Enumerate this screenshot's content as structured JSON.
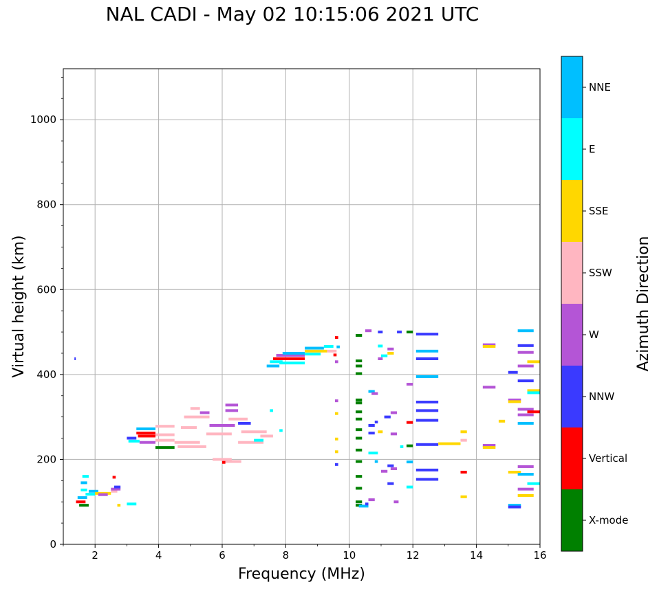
{
  "chart_data": {
    "type": "scatter",
    "title": "NAL CADI - May 02 10:15:06 2021 UTC",
    "xlabel": "Frequency (MHz)",
    "ylabel": "Virtual height (km)",
    "colorbar_label": "Azimuth Direction",
    "xlim": [
      1,
      16
    ],
    "ylim": [
      0,
      1120
    ],
    "xticks": [
      "2",
      "4",
      "6",
      "8",
      "10",
      "12",
      "14",
      "16"
    ],
    "yticks": [
      "0",
      "200",
      "400",
      "600",
      "800",
      "1000"
    ],
    "grid": true,
    "categories": [
      {
        "name": "X-mode",
        "color": "#008000"
      },
      {
        "name": "Vertical",
        "color": "#ff0000"
      },
      {
        "name": "NNW",
        "color": "#3a3aff"
      },
      {
        "name": "W",
        "color": "#b455d6"
      },
      {
        "name": "SSW",
        "color": "#ffb6c1"
      },
      {
        "name": "SSE",
        "color": "#ffd700"
      },
      {
        "name": "E",
        "color": "#00ffff"
      },
      {
        "name": "NNE",
        "color": "#00bfff"
      }
    ],
    "echoes": [
      {
        "f0": 1.35,
        "f1": 1.39,
        "h": 437,
        "dir": "NNW"
      },
      {
        "f0": 1.4,
        "f1": 1.7,
        "h": 100,
        "dir": "Vertical"
      },
      {
        "f0": 1.45,
        "f1": 1.75,
        "h": 110,
        "dir": "NNE"
      },
      {
        "f0": 1.5,
        "f1": 1.8,
        "h": 92,
        "dir": "X-mode"
      },
      {
        "f0": 1.55,
        "f1": 1.75,
        "h": 128,
        "dir": "E"
      },
      {
        "f0": 1.55,
        "f1": 1.75,
        "h": 145,
        "dir": "NNE"
      },
      {
        "f0": 1.6,
        "f1": 1.8,
        "h": 160,
        "dir": "E"
      },
      {
        "f0": 1.7,
        "f1": 2.0,
        "h": 118,
        "dir": "E"
      },
      {
        "f0": 1.8,
        "f1": 2.1,
        "h": 125,
        "dir": "NNE"
      },
      {
        "f0": 2.0,
        "f1": 2.5,
        "h": 120,
        "dir": "SSE"
      },
      {
        "f0": 2.1,
        "f1": 2.4,
        "h": 117,
        "dir": "W"
      },
      {
        "f0": 2.5,
        "f1": 2.7,
        "h": 125,
        "dir": "SSW"
      },
      {
        "f0": 2.5,
        "f1": 2.8,
        "h": 130,
        "dir": "W"
      },
      {
        "f0": 2.55,
        "f1": 2.65,
        "h": 158,
        "dir": "Vertical"
      },
      {
        "f0": 2.6,
        "f1": 2.8,
        "h": 135,
        "dir": "NNW"
      },
      {
        "f0": 2.7,
        "f1": 2.8,
        "h": 92,
        "dir": "SSE"
      },
      {
        "f0": 3.0,
        "f1": 3.3,
        "h": 95,
        "dir": "E"
      },
      {
        "f0": 3.0,
        "f1": 3.3,
        "h": 250,
        "dir": "NNW"
      },
      {
        "f0": 3.05,
        "f1": 3.4,
        "h": 243,
        "dir": "E"
      },
      {
        "f0": 3.3,
        "f1": 3.9,
        "h": 272,
        "dir": "NNE"
      },
      {
        "f0": 3.3,
        "f1": 3.9,
        "h": 262,
        "dir": "Vertical"
      },
      {
        "f0": 3.35,
        "f1": 3.9,
        "h": 255,
        "dir": "Vertical"
      },
      {
        "f0": 3.4,
        "f1": 3.9,
        "h": 240,
        "dir": "W"
      },
      {
        "f0": 3.9,
        "f1": 4.5,
        "h": 278,
        "dir": "SSW"
      },
      {
        "f0": 3.9,
        "f1": 4.5,
        "h": 258,
        "dir": "SSW"
      },
      {
        "f0": 3.9,
        "f1": 4.5,
        "h": 245,
        "dir": "SSW"
      },
      {
        "f0": 3.9,
        "f1": 4.5,
        "h": 228,
        "dir": "X-mode"
      },
      {
        "f0": 4.5,
        "f1": 5.3,
        "h": 240,
        "dir": "SSW"
      },
      {
        "f0": 4.6,
        "f1": 5.5,
        "h": 230,
        "dir": "SSW"
      },
      {
        "f0": 4.7,
        "f1": 5.2,
        "h": 275,
        "dir": "SSW"
      },
      {
        "f0": 4.8,
        "f1": 5.6,
        "h": 300,
        "dir": "SSW"
      },
      {
        "f0": 5.0,
        "f1": 5.3,
        "h": 320,
        "dir": "SSW"
      },
      {
        "f0": 5.3,
        "f1": 5.6,
        "h": 310,
        "dir": "W"
      },
      {
        "f0": 5.5,
        "f1": 6.3,
        "h": 260,
        "dir": "SSW"
      },
      {
        "f0": 5.6,
        "f1": 6.4,
        "h": 280,
        "dir": "W"
      },
      {
        "f0": 5.7,
        "f1": 6.3,
        "h": 200,
        "dir": "SSW"
      },
      {
        "f0": 6.0,
        "f1": 6.6,
        "h": 195,
        "dir": "SSW"
      },
      {
        "f0": 6.0,
        "f1": 6.1,
        "h": 193,
        "dir": "Vertical"
      },
      {
        "f0": 6.1,
        "f1": 6.5,
        "h": 328,
        "dir": "W"
      },
      {
        "f0": 6.1,
        "f1": 6.5,
        "h": 315,
        "dir": "W"
      },
      {
        "f0": 6.2,
        "f1": 6.8,
        "h": 295,
        "dir": "SSW"
      },
      {
        "f0": 6.5,
        "f1": 6.9,
        "h": 285,
        "dir": "NNW"
      },
      {
        "f0": 6.5,
        "f1": 7.3,
        "h": 240,
        "dir": "SSW"
      },
      {
        "f0": 6.6,
        "f1": 7.4,
        "h": 265,
        "dir": "SSW"
      },
      {
        "f0": 7.0,
        "f1": 7.3,
        "h": 245,
        "dir": "E"
      },
      {
        "f0": 7.2,
        "f1": 7.6,
        "h": 255,
        "dir": "SSW"
      },
      {
        "f0": 7.5,
        "f1": 7.6,
        "h": 315,
        "dir": "E"
      },
      {
        "f0": 7.8,
        "f1": 7.9,
        "h": 268,
        "dir": "E"
      },
      {
        "f0": 7.4,
        "f1": 7.8,
        "h": 420,
        "dir": "NNE"
      },
      {
        "f0": 7.5,
        "f1": 7.9,
        "h": 430,
        "dir": "E"
      },
      {
        "f0": 7.6,
        "f1": 8.6,
        "h": 437,
        "dir": "Vertical"
      },
      {
        "f0": 7.7,
        "f1": 8.6,
        "h": 445,
        "dir": "W"
      },
      {
        "f0": 7.8,
        "f1": 8.6,
        "h": 427,
        "dir": "E"
      },
      {
        "f0": 7.9,
        "f1": 8.6,
        "h": 450,
        "dir": "NNE"
      },
      {
        "f0": 8.6,
        "f1": 9.2,
        "h": 462,
        "dir": "NNE"
      },
      {
        "f0": 8.6,
        "f1": 9.3,
        "h": 455,
        "dir": "SSE"
      },
      {
        "f0": 8.6,
        "f1": 9.1,
        "h": 448,
        "dir": "E"
      },
      {
        "f0": 9.2,
        "f1": 9.5,
        "h": 466,
        "dir": "E"
      },
      {
        "f0": 9.3,
        "f1": 9.6,
        "h": 455,
        "dir": "SSW"
      },
      {
        "f0": 9.5,
        "f1": 9.6,
        "h": 446,
        "dir": "Vertical"
      },
      {
        "f0": 9.6,
        "f1": 9.7,
        "h": 465,
        "dir": "NNE"
      },
      {
        "f0": 9.55,
        "f1": 9.65,
        "h": 487,
        "dir": "Vertical"
      },
      {
        "f0": 9.55,
        "f1": 9.65,
        "h": 430,
        "dir": "W"
      },
      {
        "f0": 9.55,
        "f1": 9.65,
        "h": 338,
        "dir": "W"
      },
      {
        "f0": 9.55,
        "f1": 9.65,
        "h": 308,
        "dir": "SSE"
      },
      {
        "f0": 9.55,
        "f1": 9.65,
        "h": 248,
        "dir": "SSE"
      },
      {
        "f0": 9.55,
        "f1": 9.65,
        "h": 218,
        "dir": "SSE"
      },
      {
        "f0": 9.55,
        "f1": 9.65,
        "h": 188,
        "dir": "NNW"
      },
      {
        "f0": 10.2,
        "f1": 10.4,
        "h": 492,
        "dir": "X-mode"
      },
      {
        "f0": 10.2,
        "f1": 10.4,
        "h": 432,
        "dir": "X-mode"
      },
      {
        "f0": 10.2,
        "f1": 10.4,
        "h": 420,
        "dir": "X-mode"
      },
      {
        "f0": 10.2,
        "f1": 10.4,
        "h": 402,
        "dir": "X-mode"
      },
      {
        "f0": 10.2,
        "f1": 10.4,
        "h": 340,
        "dir": "X-mode"
      },
      {
        "f0": 10.2,
        "f1": 10.4,
        "h": 333,
        "dir": "X-mode"
      },
      {
        "f0": 10.2,
        "f1": 10.4,
        "h": 312,
        "dir": "X-mode"
      },
      {
        "f0": 10.2,
        "f1": 10.4,
        "h": 295,
        "dir": "X-mode"
      },
      {
        "f0": 10.2,
        "f1": 10.4,
        "h": 270,
        "dir": "X-mode"
      },
      {
        "f0": 10.2,
        "f1": 10.4,
        "h": 250,
        "dir": "X-mode"
      },
      {
        "f0": 10.2,
        "f1": 10.4,
        "h": 222,
        "dir": "X-mode"
      },
      {
        "f0": 10.2,
        "f1": 10.4,
        "h": 195,
        "dir": "X-mode"
      },
      {
        "f0": 10.2,
        "f1": 10.4,
        "h": 160,
        "dir": "X-mode"
      },
      {
        "f0": 10.2,
        "f1": 10.4,
        "h": 132,
        "dir": "X-mode"
      },
      {
        "f0": 10.2,
        "f1": 10.4,
        "h": 100,
        "dir": "X-mode"
      },
      {
        "f0": 10.2,
        "f1": 10.4,
        "h": 92,
        "dir": "X-mode"
      },
      {
        "f0": 10.3,
        "f1": 10.6,
        "h": 90,
        "dir": "NNE"
      },
      {
        "f0": 10.5,
        "f1": 10.6,
        "h": 95,
        "dir": "NNW"
      },
      {
        "f0": 10.5,
        "f1": 10.7,
        "h": 503,
        "dir": "W"
      },
      {
        "f0": 10.6,
        "f1": 10.9,
        "h": 215,
        "dir": "E"
      },
      {
        "f0": 10.6,
        "f1": 10.8,
        "h": 360,
        "dir": "NNE"
      },
      {
        "f0": 10.6,
        "f1": 10.8,
        "h": 280,
        "dir": "NNW"
      },
      {
        "f0": 10.6,
        "f1": 10.8,
        "h": 262,
        "dir": "NNW"
      },
      {
        "f0": 10.6,
        "f1": 10.8,
        "h": 105,
        "dir": "W"
      },
      {
        "f0": 10.7,
        "f1": 10.9,
        "h": 355,
        "dir": "W"
      },
      {
        "f0": 10.8,
        "f1": 10.9,
        "h": 288,
        "dir": "NNW"
      },
      {
        "f0": 10.8,
        "f1": 10.9,
        "h": 195,
        "dir": "NNE"
      },
      {
        "f0": 10.9,
        "f1": 11.05,
        "h": 500,
        "dir": "NNW"
      },
      {
        "f0": 10.9,
        "f1": 11.05,
        "h": 467,
        "dir": "E"
      },
      {
        "f0": 10.9,
        "f1": 11.05,
        "h": 437,
        "dir": "W"
      },
      {
        "f0": 10.9,
        "f1": 11.05,
        "h": 265,
        "dir": "SSE"
      },
      {
        "f0": 11.0,
        "f1": 11.2,
        "h": 444,
        "dir": "E"
      },
      {
        "f0": 11.0,
        "f1": 11.2,
        "h": 172,
        "dir": "W"
      },
      {
        "f0": 11.1,
        "f1": 11.3,
        "h": 300,
        "dir": "NNW"
      },
      {
        "f0": 11.2,
        "f1": 11.4,
        "h": 185,
        "dir": "NNW"
      },
      {
        "f0": 11.2,
        "f1": 11.4,
        "h": 143,
        "dir": "NNW"
      },
      {
        "f0": 11.2,
        "f1": 11.4,
        "h": 460,
        "dir": "W"
      },
      {
        "f0": 11.2,
        "f1": 11.4,
        "h": 450,
        "dir": "SSE"
      },
      {
        "f0": 11.3,
        "f1": 11.5,
        "h": 310,
        "dir": "W"
      },
      {
        "f0": 11.3,
        "f1": 11.5,
        "h": 260,
        "dir": "W"
      },
      {
        "f0": 11.3,
        "f1": 11.5,
        "h": 178,
        "dir": "W"
      },
      {
        "f0": 11.4,
        "f1": 11.55,
        "h": 100,
        "dir": "W"
      },
      {
        "f0": 11.5,
        "f1": 11.65,
        "h": 500,
        "dir": "NNW"
      },
      {
        "f0": 11.6,
        "f1": 11.7,
        "h": 230,
        "dir": "E"
      },
      {
        "f0": 11.8,
        "f1": 12.0,
        "h": 500,
        "dir": "X-mode"
      },
      {
        "f0": 11.8,
        "f1": 12.0,
        "h": 377,
        "dir": "W"
      },
      {
        "f0": 11.8,
        "f1": 12.0,
        "h": 287,
        "dir": "Vertical"
      },
      {
        "f0": 11.8,
        "f1": 12.0,
        "h": 232,
        "dir": "X-mode"
      },
      {
        "f0": 11.8,
        "f1": 12.0,
        "h": 194,
        "dir": "NNE"
      },
      {
        "f0": 11.8,
        "f1": 12.0,
        "h": 135,
        "dir": "E"
      },
      {
        "f0": 12.1,
        "f1": 12.8,
        "h": 495,
        "dir": "NNW"
      },
      {
        "f0": 12.1,
        "f1": 12.8,
        "h": 455,
        "dir": "NNE"
      },
      {
        "f0": 12.1,
        "f1": 12.8,
        "h": 437,
        "dir": "NNW"
      },
      {
        "f0": 12.1,
        "f1": 12.8,
        "h": 395,
        "dir": "NNE"
      },
      {
        "f0": 12.1,
        "f1": 12.8,
        "h": 335,
        "dir": "NNW"
      },
      {
        "f0": 12.1,
        "f1": 12.8,
        "h": 315,
        "dir": "NNW"
      },
      {
        "f0": 12.1,
        "f1": 12.8,
        "h": 292,
        "dir": "NNW"
      },
      {
        "f0": 12.1,
        "f1": 12.8,
        "h": 235,
        "dir": "NNW"
      },
      {
        "f0": 12.1,
        "f1": 12.8,
        "h": 175,
        "dir": "NNW"
      },
      {
        "f0": 12.1,
        "f1": 12.8,
        "h": 153,
        "dir": "NNW"
      },
      {
        "f0": 12.8,
        "f1": 13.5,
        "h": 237,
        "dir": "SSE"
      },
      {
        "f0": 13.5,
        "f1": 13.7,
        "h": 245,
        "dir": "SSW"
      },
      {
        "f0": 13.5,
        "f1": 13.7,
        "h": 265,
        "dir": "SSE"
      },
      {
        "f0": 13.5,
        "f1": 13.7,
        "h": 170,
        "dir": "Vertical"
      },
      {
        "f0": 13.5,
        "f1": 13.7,
        "h": 112,
        "dir": "SSE"
      },
      {
        "f0": 14.2,
        "f1": 14.6,
        "h": 470,
        "dir": "W"
      },
      {
        "f0": 14.2,
        "f1": 14.6,
        "h": 466,
        "dir": "SSE"
      },
      {
        "f0": 14.2,
        "f1": 14.6,
        "h": 370,
        "dir": "W"
      },
      {
        "f0": 14.2,
        "f1": 14.6,
        "h": 233,
        "dir": "W"
      },
      {
        "f0": 14.2,
        "f1": 14.6,
        "h": 228,
        "dir": "SSE"
      },
      {
        "f0": 14.7,
        "f1": 14.9,
        "h": 290,
        "dir": "SSE"
      },
      {
        "f0": 15.0,
        "f1": 15.3,
        "h": 405,
        "dir": "NNW"
      },
      {
        "f0": 15.0,
        "f1": 15.4,
        "h": 340,
        "dir": "W"
      },
      {
        "f0": 15.0,
        "f1": 15.4,
        "h": 336,
        "dir": "SSE"
      },
      {
        "f0": 15.0,
        "f1": 15.4,
        "h": 170,
        "dir": "SSE"
      },
      {
        "f0": 15.0,
        "f1": 15.4,
        "h": 92,
        "dir": "NNE"
      },
      {
        "f0": 15.0,
        "f1": 15.4,
        "h": 88,
        "dir": "NNW"
      },
      {
        "f0": 15.3,
        "f1": 15.8,
        "h": 503,
        "dir": "NNE"
      },
      {
        "f0": 15.3,
        "f1": 15.8,
        "h": 468,
        "dir": "NNW"
      },
      {
        "f0": 15.3,
        "f1": 15.8,
        "h": 452,
        "dir": "W"
      },
      {
        "f0": 15.3,
        "f1": 15.8,
        "h": 420,
        "dir": "W"
      },
      {
        "f0": 15.3,
        "f1": 15.8,
        "h": 385,
        "dir": "NNW"
      },
      {
        "f0": 15.3,
        "f1": 15.8,
        "h": 318,
        "dir": "W"
      },
      {
        "f0": 15.3,
        "f1": 15.8,
        "h": 305,
        "dir": "W"
      },
      {
        "f0": 15.3,
        "f1": 15.8,
        "h": 285,
        "dir": "NNE"
      },
      {
        "f0": 15.3,
        "f1": 15.8,
        "h": 183,
        "dir": "W"
      },
      {
        "f0": 15.3,
        "f1": 15.8,
        "h": 165,
        "dir": "NNE"
      },
      {
        "f0": 15.3,
        "f1": 15.8,
        "h": 130,
        "dir": "W"
      },
      {
        "f0": 15.3,
        "f1": 15.8,
        "h": 115,
        "dir": "SSE"
      },
      {
        "f0": 15.6,
        "f1": 16.0,
        "h": 430,
        "dir": "SSE"
      },
      {
        "f0": 15.6,
        "f1": 16.0,
        "h": 362,
        "dir": "SSE"
      },
      {
        "f0": 15.6,
        "f1": 16.0,
        "h": 357,
        "dir": "E"
      },
      {
        "f0": 15.6,
        "f1": 16.0,
        "h": 312,
        "dir": "Vertical"
      },
      {
        "f0": 15.6,
        "f1": 16.0,
        "h": 143,
        "dir": "E"
      }
    ]
  }
}
